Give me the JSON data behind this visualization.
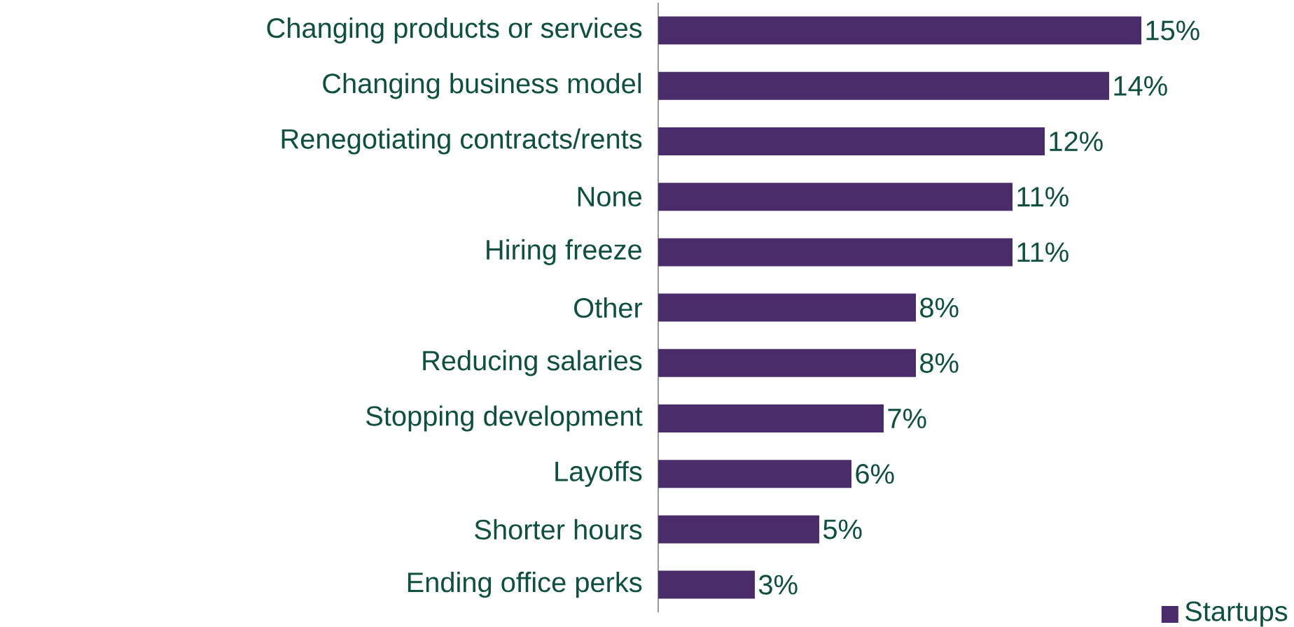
{
  "chart_data": {
    "type": "bar",
    "orientation": "horizontal",
    "categories": [
      "Changing products or services",
      "Changing business model",
      "Renegotiating contracts/rents",
      "None",
      "Hiring freeze",
      "Other",
      "Reducing salaries",
      "Stopping development",
      "Layoffs",
      "Shorter hours",
      "Ending office perks"
    ],
    "series": [
      {
        "name": "Startups",
        "color": "#4b2c6b",
        "values": [
          15,
          14,
          12,
          11,
          11,
          8,
          8,
          7,
          6,
          5,
          3
        ],
        "value_labels": [
          "15%",
          "14%",
          "12%",
          "11%",
          "11%",
          "8%",
          "8%",
          "7%",
          "6%",
          "5%",
          "3%"
        ]
      }
    ],
    "legend": "bottom right"
  }
}
